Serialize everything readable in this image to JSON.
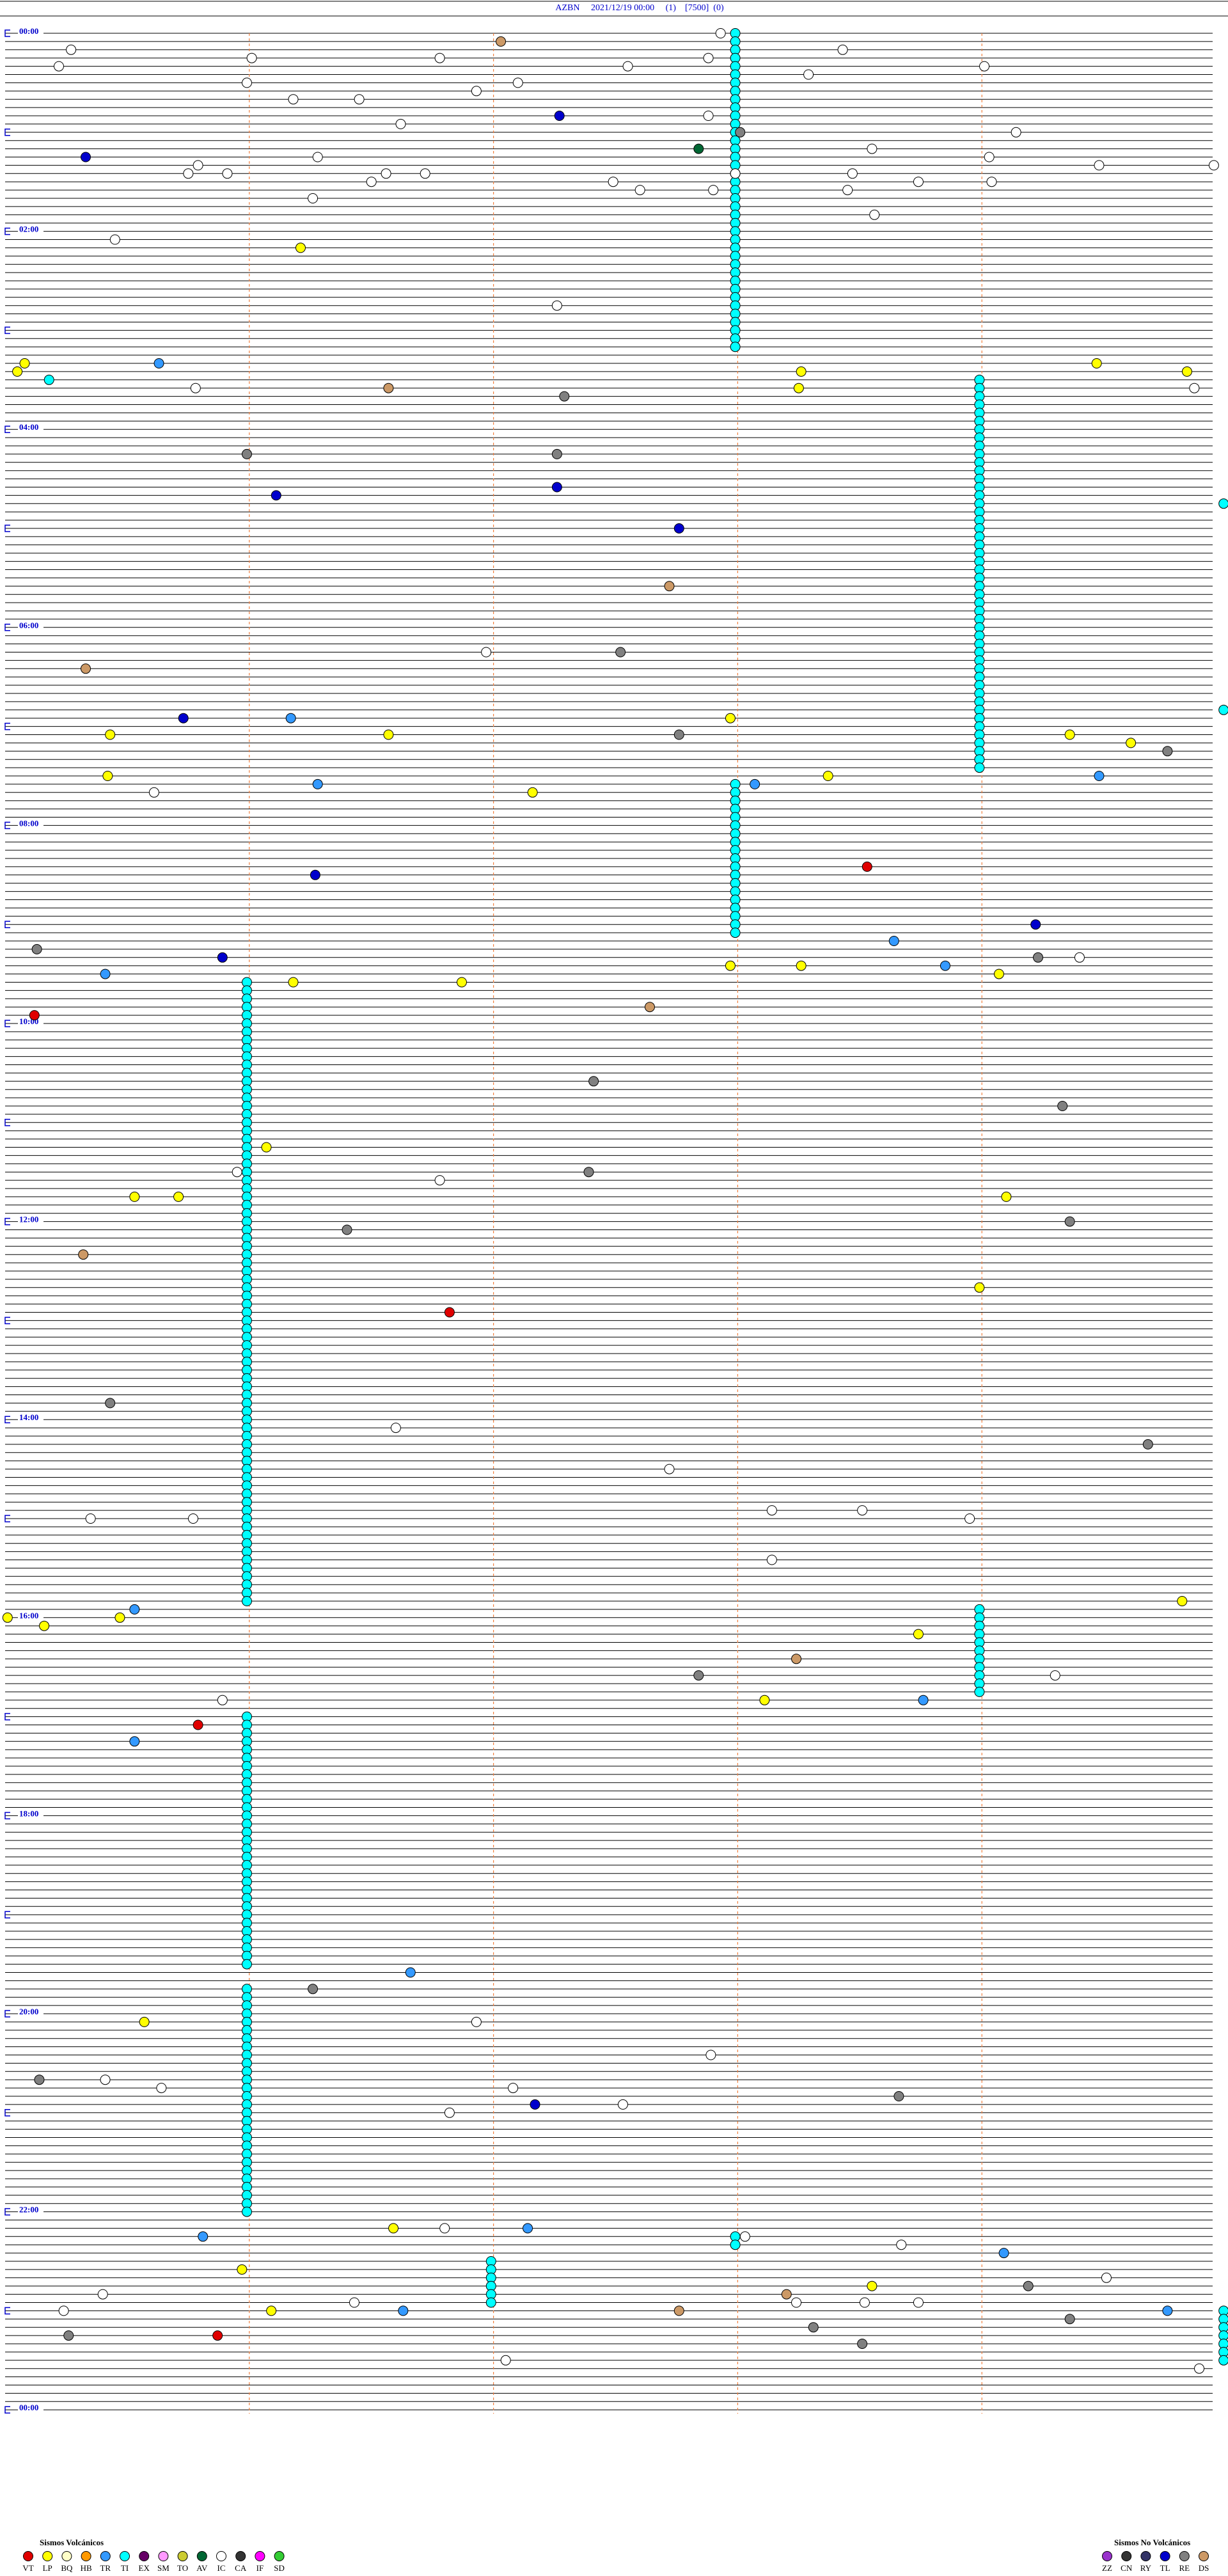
{
  "header": {
    "title": "AZBN     2021/12/19 00:00     (1)    [7500]  (0)"
  },
  "time_labels": [
    "00:00",
    "02:00",
    "04:00",
    "06:00",
    "08:00",
    "10:00",
    "12:00",
    "14:00",
    "16:00",
    "18:00",
    "20:00",
    "22:00",
    "00:00"
  ],
  "legend": {
    "volcanic": {
      "title": "Sismos Volcánicos",
      "types": [
        {
          "code": "VT",
          "color": "#e00000"
        },
        {
          "code": "LP",
          "color": "#ffff00"
        },
        {
          "code": "BQ",
          "color": "#ffffc8"
        },
        {
          "code": "HB",
          "color": "#ff9900"
        },
        {
          "code": "TR",
          "color": "#3399ff"
        },
        {
          "code": "TI",
          "color": "#00ffff"
        },
        {
          "code": "EX",
          "color": "#660066"
        },
        {
          "code": "SM",
          "color": "#ff99ff"
        },
        {
          "code": "TO",
          "color": "#cccc33"
        },
        {
          "code": "AV",
          "color": "#006633"
        },
        {
          "code": "IC",
          "color": "#ffffff"
        },
        {
          "code": "CA",
          "color": "#333333"
        },
        {
          "code": "IF",
          "color": "#ff00ff"
        },
        {
          "code": "SD",
          "color": "#33cc33"
        }
      ]
    },
    "non_volcanic": {
      "title": "Sismos No Volcánicos",
      "types": [
        {
          "code": "ZZ",
          "color": "#9933cc"
        },
        {
          "code": "CN",
          "color": "#333333"
        },
        {
          "code": "RY",
          "color": "#333366"
        },
        {
          "code": "TL",
          "color": "#0000cc"
        },
        {
          "code": "RE",
          "color": "#808080"
        },
        {
          "code": "DS",
          "color": "#cc9966"
        }
      ]
    }
  },
  "events": [
    {
      "type": "IC",
      "minute": 2.93
    },
    {
      "type": "DS",
      "minute": 7.03
    },
    {
      "type": "IC",
      "minute": 10.27
    },
    {
      "type": "IC",
      "minute": 16.01
    },
    {
      "type": "IC",
      "minute": 13.43
    },
    {
      "type": "IC",
      "minute": 16.78
    },
    {
      "type": "IC",
      "minute": 17.88
    },
    {
      "type": "IC",
      "minute": 20.22
    },
    {
      "type": "IC",
      "minute": 22.55
    },
    {
      "type": "IC",
      "minute": 24.01
    },
    {
      "type": "IC",
      "minute": 28.29
    },
    {
      "type": "IC",
      "minute": 30.99
    },
    {
      "type": "IC",
      "minute": 32.1
    },
    {
      "type": "IC",
      "minute": 36.93
    },
    {
      "type": "IC",
      "minute": 41.18
    },
    {
      "type": "IC",
      "minute": 41.45
    },
    {
      "type": "TL",
      "minute": 52.27
    },
    {
      "type": "IC",
      "minute": 52.88
    },
    {
      "type": "IC",
      "minute": 56.62
    },
    {
      "type": "RE",
      "minute": 63.01
    },
    {
      "type": "IC",
      "minute": 64.14
    },
    {
      "type": "AV",
      "minute": 72.84
    },
    {
      "type": "IC",
      "minute": 73.55
    },
    {
      "type": "TL",
      "minute": 75.33
    },
    {
      "type": "IC",
      "minute": 76.28
    },
    {
      "type": "IC",
      "minute": 79.03
    },
    {
      "type": "IC",
      "minute": 80.79
    },
    {
      "type": "IC",
      "minute": 84.48
    },
    {
      "type": "IC",
      "minute": 84.95
    },
    {
      "type": "IC",
      "minute": 85.75
    },
    {
      "type": "IC",
      "minute": 85.91
    },
    {
      "type": "IC",
      "minute": 86.56
    },
    {
      "type": "IC",
      "minute": 86.72
    },
    {
      "type": "IC",
      "minute": 87.99
    },
    {
      "type": "IC",
      "minute": 88.47
    },
    {
      "type": "IC",
      "minute": 91.5
    },
    {
      "type": "IC",
      "minute": 92.49
    },
    {
      "type": "IC",
      "minute": 93.74
    },
    {
      "type": "IC",
      "minute": 94.04
    },
    {
      "type": "IC",
      "minute": 97.6
    },
    {
      "type": "IC",
      "minute": 97.9
    },
    {
      "type": "IC",
      "minute": 98.45
    },
    {
      "type": "IC",
      "minute": 101.26
    },
    {
      "type": "IC",
      "minute": 113.56
    },
    {
      "type": "IC",
      "minute": 125.45
    },
    {
      "type": "LP",
      "minute": 131.21
    },
    {
      "type": "IC",
      "minute": 167.26
    },
    {
      "type": "LP",
      "minute": 200.08
    },
    {
      "type": "TR",
      "minute": 200.63
    },
    {
      "type": "LP",
      "minute": 204.47
    },
    {
      "type": "LP",
      "minute": 205.05
    },
    {
      "type": "LP",
      "minute": 208.26
    },
    {
      "type": "LP",
      "minute": 209.84
    },
    {
      "type": "TI",
      "minute": 210.18
    },
    {
      "type": "LP",
      "minute": 218.25
    },
    {
      "type": "IC",
      "minute": 219.87
    },
    {
      "type": "IC",
      "minute": 215.78
    },
    {
      "type": "DS",
      "minute": 216.57
    },
    {
      "type": "RE",
      "minute": 222.29
    },
    {
      "type": "RE",
      "minute": 257.26
    },
    {
      "type": "RE",
      "minute": 255.99
    },
    {
      "type": "TL",
      "minute": 277.26
    },
    {
      "type": "TL",
      "minute": 281.11
    },
    {
      "type": "TI",
      "minute": 289.99
    },
    {
      "type": "TL",
      "minute": 302.76
    },
    {
      "type": "DS",
      "minute": 337.72
    },
    {
      "type": "IC",
      "minute": 376.97
    },
    {
      "type": "RE",
      "minute": 377.52
    },
    {
      "type": "DS",
      "minute": 385.33
    },
    {
      "type": "TI",
      "minute": 414.99
    },
    {
      "type": "TL",
      "minute": 415.73
    },
    {
      "type": "TR",
      "minute": 416.17
    },
    {
      "type": "LP",
      "minute": 417.97
    },
    {
      "type": "LP",
      "minute": 425.43
    },
    {
      "type": "LP",
      "minute": 426.57
    },
    {
      "type": "RE",
      "minute": 427.76
    },
    {
      "type": "LP",
      "minute": 429.36
    },
    {
      "type": "LP",
      "minute": 434.61
    },
    {
      "type": "RE",
      "minute": 439.76
    },
    {
      "type": "LP",
      "minute": 450.42
    },
    {
      "type": "LP",
      "minute": 453.37
    },
    {
      "type": "TR",
      "minute": 454.48
    },
    {
      "type": "TR",
      "minute": 456.28
    },
    {
      "type": "TR",
      "minute": 458.07
    },
    {
      "type": "IC",
      "minute": 460.61
    },
    {
      "type": "LP",
      "minute": 462.16
    },
    {
      "type": "VT",
      "minute": 508.53
    },
    {
      "type": "TL",
      "minute": 511.27
    },
    {
      "type": "TL",
      "minute": 544.22
    },
    {
      "type": "TR",
      "minute": 553.64
    },
    {
      "type": "RE",
      "minute": 555.13
    },
    {
      "type": "RE",
      "minute": 564.23
    },
    {
      "type": "IC",
      "minute": 564.4
    },
    {
      "type": "TL",
      "minute": 560.89
    },
    {
      "type": "LP",
      "minute": 567.97
    },
    {
      "type": "LP",
      "minute": 568.26
    },
    {
      "type": "TR",
      "minute": 568.85
    },
    {
      "type": "TR",
      "minute": 570.41
    },
    {
      "type": "LP",
      "minute": 574.07
    },
    {
      "type": "LP",
      "minute": 576.18
    },
    {
      "type": "LP",
      "minute": 576.87
    },
    {
      "type": "DS",
      "minute": 592.64
    },
    {
      "type": "VT",
      "minute": 595.12
    },
    {
      "type": "RE",
      "minute": 637.41
    },
    {
      "type": "RE",
      "minute": 654.33
    },
    {
      "type": "LP",
      "minute": 676.07
    },
    {
      "type": "IC",
      "minute": 690.95
    },
    {
      "type": "RE",
      "minute": 692.39
    },
    {
      "type": "IC",
      "minute": 696.78
    },
    {
      "type": "LP",
      "minute": 705.53
    },
    {
      "type": "LP",
      "minute": 705.71
    },
    {
      "type": "LP",
      "minute": 709.1
    },
    {
      "type": "RE",
      "minute": 724.36
    },
    {
      "type": "RE",
      "minute": 726.4
    },
    {
      "type": "DS",
      "minute": 740.32
    },
    {
      "type": "LP",
      "minute": 763.99
    },
    {
      "type": "VT",
      "minute": 776.82
    },
    {
      "type": "RE",
      "minute": 830.43
    },
    {
      "type": "IC",
      "minute": 846.6
    },
    {
      "type": "RE",
      "minute": 859.68
    },
    {
      "type": "IC",
      "minute": 872.72
    },
    {
      "type": "IC",
      "minute": 898.14
    },
    {
      "type": "IC",
      "minute": 898.51
    },
    {
      "type": "IC",
      "minute": 900.35
    },
    {
      "type": "IC",
      "minute": 900.77
    },
    {
      "type": "IC",
      "minute": 903.95
    },
    {
      "type": "IC",
      "minute": 928.14
    },
    {
      "type": "LP",
      "minute": 954.82
    },
    {
      "type": "TR",
      "minute": 955.53
    },
    {
      "type": "LP",
      "minute": 960.01
    },
    {
      "type": "LP",
      "minute": 960.47
    },
    {
      "type": "LP",
      "minute": 965.16
    },
    {
      "type": "LP",
      "minute": 973.74
    },
    {
      "type": "DS",
      "minute": 988.24
    },
    {
      "type": "RE",
      "minute": 997.84
    },
    {
      "type": "IC",
      "minute": 999.3
    },
    {
      "type": "IC",
      "minute": 1010.89
    },
    {
      "type": "LP",
      "minute": 1013.11
    },
    {
      "type": "TR",
      "minute": 1013.76
    },
    {
      "type": "VT",
      "minute": 1025.79
    },
    {
      "type": "TR",
      "minute": 1035.53
    },
    {
      "type": "RE",
      "minute": 1186.26
    },
    {
      "type": "TR",
      "minute": 1176.66
    },
    {
      "type": "LP",
      "minute": 1205.57
    },
    {
      "type": "IC",
      "minute": 1206.93
    },
    {
      "type": "IC",
      "minute": 1227.89
    },
    {
      "type": "RE",
      "minute": 1240.14
    },
    {
      "type": "IC",
      "minute": 1240.41
    },
    {
      "type": "IC",
      "minute": 1245.64
    },
    {
      "type": "IC",
      "minute": 1247.08
    },
    {
      "type": "RE",
      "minute": 1253.66
    },
    {
      "type": "TL",
      "minute": 1257.17
    },
    {
      "type": "IC",
      "minute": 1257.53
    },
    {
      "type": "IC",
      "minute": 1261.82
    },
    {
      "type": "LP",
      "minute": 1331.59
    },
    {
      "type": "IC",
      "minute": 1331.8
    },
    {
      "type": "TR",
      "minute": 1332.14
    },
    {
      "type": "IC",
      "minute": 1338.03
    },
    {
      "type": "TR",
      "minute": 1335.81
    },
    {
      "type": "IC",
      "minute": 1343.67
    },
    {
      "type": "TR",
      "minute": 1349.09
    },
    {
      "type": "LP",
      "minute": 1355.97
    },
    {
      "type": "IC",
      "minute": 1364.51
    },
    {
      "type": "RE",
      "minute": 1369.19
    },
    {
      "type": "LP",
      "minute": 1368.55
    },
    {
      "type": "IC",
      "minute": 1370.4
    },
    {
      "type": "DS",
      "minute": 1373.2
    },
    {
      "type": "IC",
      "minute": 1376.43
    },
    {
      "type": "IC",
      "minute": 1378.24
    },
    {
      "type": "IC",
      "minute": 1378.52
    },
    {
      "type": "IC",
      "minute": 1378.74
    },
    {
      "type": "IC",
      "minute": 1380.24
    },
    {
      "type": "LP",
      "minute": 1381.09
    },
    {
      "type": "TR",
      "minute": 1381.63
    },
    {
      "type": "DS",
      "minute": 1382.76
    },
    {
      "type": "TR",
      "minute": 1384.76
    },
    {
      "type": "RE",
      "minute": 1389.36
    },
    {
      "type": "RE",
      "minute": 1393.31
    },
    {
      "type": "RE",
      "minute": 1395.26
    },
    {
      "type": "VT",
      "minute": 1395.87
    },
    {
      "type": "RE",
      "minute": 1403.51
    },
    {
      "type": "IC",
      "minute": 1412.05
    },
    {
      "type": "IC",
      "minute": 1419.89
    }
  ],
  "swarms": [
    {
      "type": "TI",
      "start": 2.99,
      "count": 39
    },
    {
      "type": "TI",
      "start": 213.99,
      "count": 48
    },
    {
      "type": "TI",
      "start": 457.99,
      "count": 19
    },
    {
      "type": "TI",
      "start": 575.99,
      "count": 76
    },
    {
      "type": "TI",
      "start": 958.99,
      "count": 11
    },
    {
      "type": "TI",
      "start": 1020.99,
      "count": 31
    },
    {
      "type": "TI",
      "start": 1185.99,
      "count": 28
    },
    {
      "type": "TI",
      "start": 1351.99,
      "count": 6
    },
    {
      "type": "TI",
      "start": 1337.99,
      "count": 2
    },
    {
      "type": "TI",
      "start": 1384.99,
      "count": 7
    }
  ]
}
